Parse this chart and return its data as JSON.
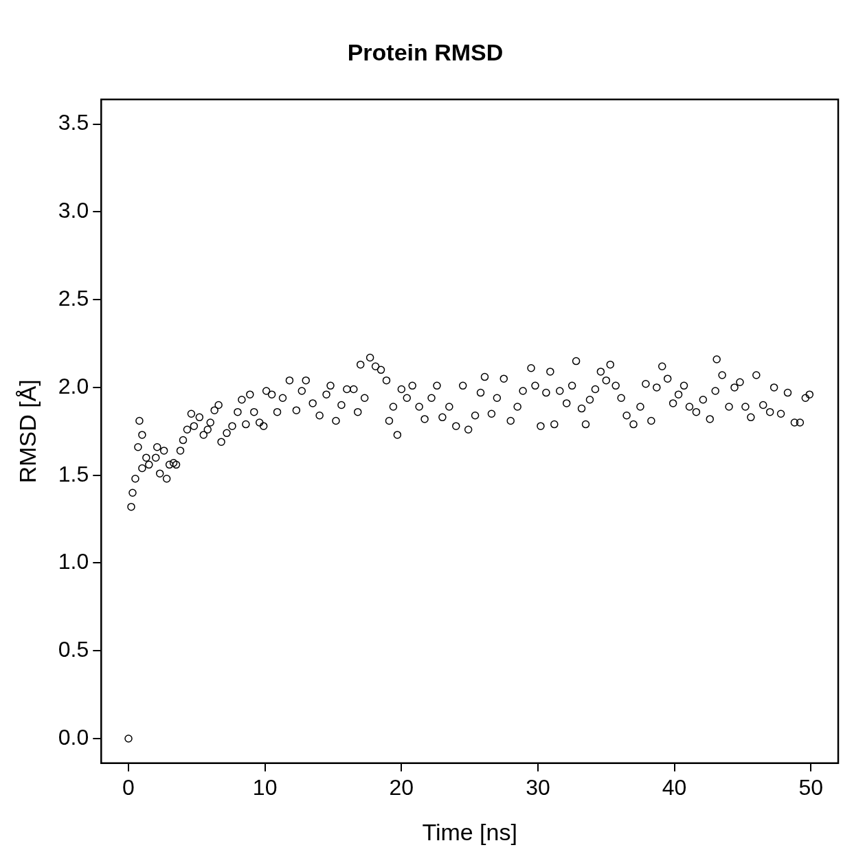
{
  "chart_data": {
    "type": "scatter",
    "title": "Protein RMSD",
    "xlabel": "Time [ns]",
    "ylabel": "RMSD [Å]",
    "color": "#000000",
    "marker": "circle",
    "grid": false,
    "xlim": [
      -2,
      52
    ],
    "ylim": [
      -0.14,
      3.64
    ],
    "xticks": [
      0,
      10,
      20,
      30,
      40,
      50
    ],
    "yticks": [
      {
        "value": 0,
        "label": "0.0"
      },
      0.5,
      {
        "value": 1,
        "label": "1.0"
      },
      1.5,
      {
        "value": 2,
        "label": "2.0"
      },
      2.5,
      {
        "value": 3,
        "label": "3.0"
      },
      3.5
    ],
    "x": [
      0.0,
      0.2,
      0.3,
      0.5,
      0.7,
      0.8,
      1.0,
      1.0,
      1.3,
      1.5,
      2.0,
      2.1,
      2.3,
      2.6,
      2.8,
      3.0,
      3.3,
      3.5,
      3.8,
      4.0,
      4.3,
      4.6,
      4.8,
      5.2,
      5.5,
      5.8,
      6.0,
      6.3,
      6.6,
      6.8,
      7.2,
      7.6,
      8.0,
      8.3,
      8.6,
      8.9,
      9.2,
      9.6,
      9.9,
      10.1,
      10.5,
      10.9,
      11.3,
      11.8,
      12.3,
      12.7,
      13.0,
      13.5,
      14.0,
      14.5,
      14.8,
      15.2,
      15.6,
      16.0,
      16.5,
      16.8,
      17.0,
      17.3,
      17.7,
      18.1,
      18.5,
      18.9,
      19.1,
      19.4,
      19.7,
      20.0,
      20.4,
      20.8,
      21.3,
      21.7,
      22.2,
      22.6,
      23.0,
      23.5,
      24.0,
      24.5,
      24.9,
      25.4,
      25.8,
      26.1,
      26.6,
      27.0,
      27.5,
      28.0,
      28.5,
      28.9,
      29.5,
      29.8,
      30.2,
      30.6,
      30.9,
      31.2,
      31.6,
      32.1,
      32.5,
      32.8,
      33.2,
      33.5,
      33.8,
      34.2,
      34.6,
      35.0,
      35.3,
      35.7,
      36.1,
      36.5,
      37.0,
      37.5,
      37.9,
      38.3,
      38.7,
      39.1,
      39.5,
      39.9,
      40.3,
      40.7,
      41.1,
      41.6,
      42.1,
      42.6,
      43.0,
      43.1,
      43.5,
      44.0,
      44.4,
      44.8,
      45.2,
      45.6,
      46.0,
      46.5,
      47.0,
      47.3,
      47.8,
      48.3,
      48.8,
      49.2,
      49.6,
      49.9
    ],
    "values": [
      0.0,
      1.32,
      1.4,
      1.48,
      1.66,
      1.81,
      1.73,
      1.54,
      1.6,
      1.56,
      1.6,
      1.66,
      1.51,
      1.64,
      1.48,
      1.56,
      1.57,
      1.56,
      1.64,
      1.7,
      1.76,
      1.85,
      1.78,
      1.83,
      1.73,
      1.76,
      1.8,
      1.87,
      1.9,
      1.69,
      1.74,
      1.78,
      1.86,
      1.93,
      1.79,
      1.96,
      1.86,
      1.8,
      1.78,
      1.98,
      1.96,
      1.86,
      1.94,
      2.04,
      1.87,
      1.98,
      2.04,
      1.91,
      1.84,
      1.96,
      2.01,
      1.81,
      1.9,
      1.99,
      1.99,
      1.86,
      2.13,
      1.94,
      2.17,
      2.12,
      2.1,
      2.04,
      1.81,
      1.89,
      1.73,
      1.99,
      1.94,
      2.01,
      1.89,
      1.82,
      1.94,
      2.01,
      1.83,
      1.89,
      1.78,
      2.01,
      1.76,
      1.84,
      1.97,
      2.06,
      1.85,
      1.94,
      2.05,
      1.81,
      1.89,
      1.98,
      2.11,
      2.01,
      1.78,
      1.97,
      2.09,
      1.79,
      1.98,
      1.91,
      2.01,
      2.15,
      1.88,
      1.79,
      1.93,
      1.99,
      2.09,
      2.04,
      2.13,
      2.01,
      1.94,
      1.84,
      1.79,
      1.89,
      2.02,
      1.81,
      2.0,
      2.12,
      2.05,
      1.91,
      1.96,
      2.01,
      1.89,
      1.86,
      1.93,
      1.82,
      1.98,
      2.16,
      2.07,
      1.89,
      2.0,
      2.03,
      1.89,
      1.83,
      2.07,
      1.9,
      1.86,
      2.0,
      1.85,
      1.97,
      1.8,
      1.8,
      1.94,
      1.96
    ]
  }
}
